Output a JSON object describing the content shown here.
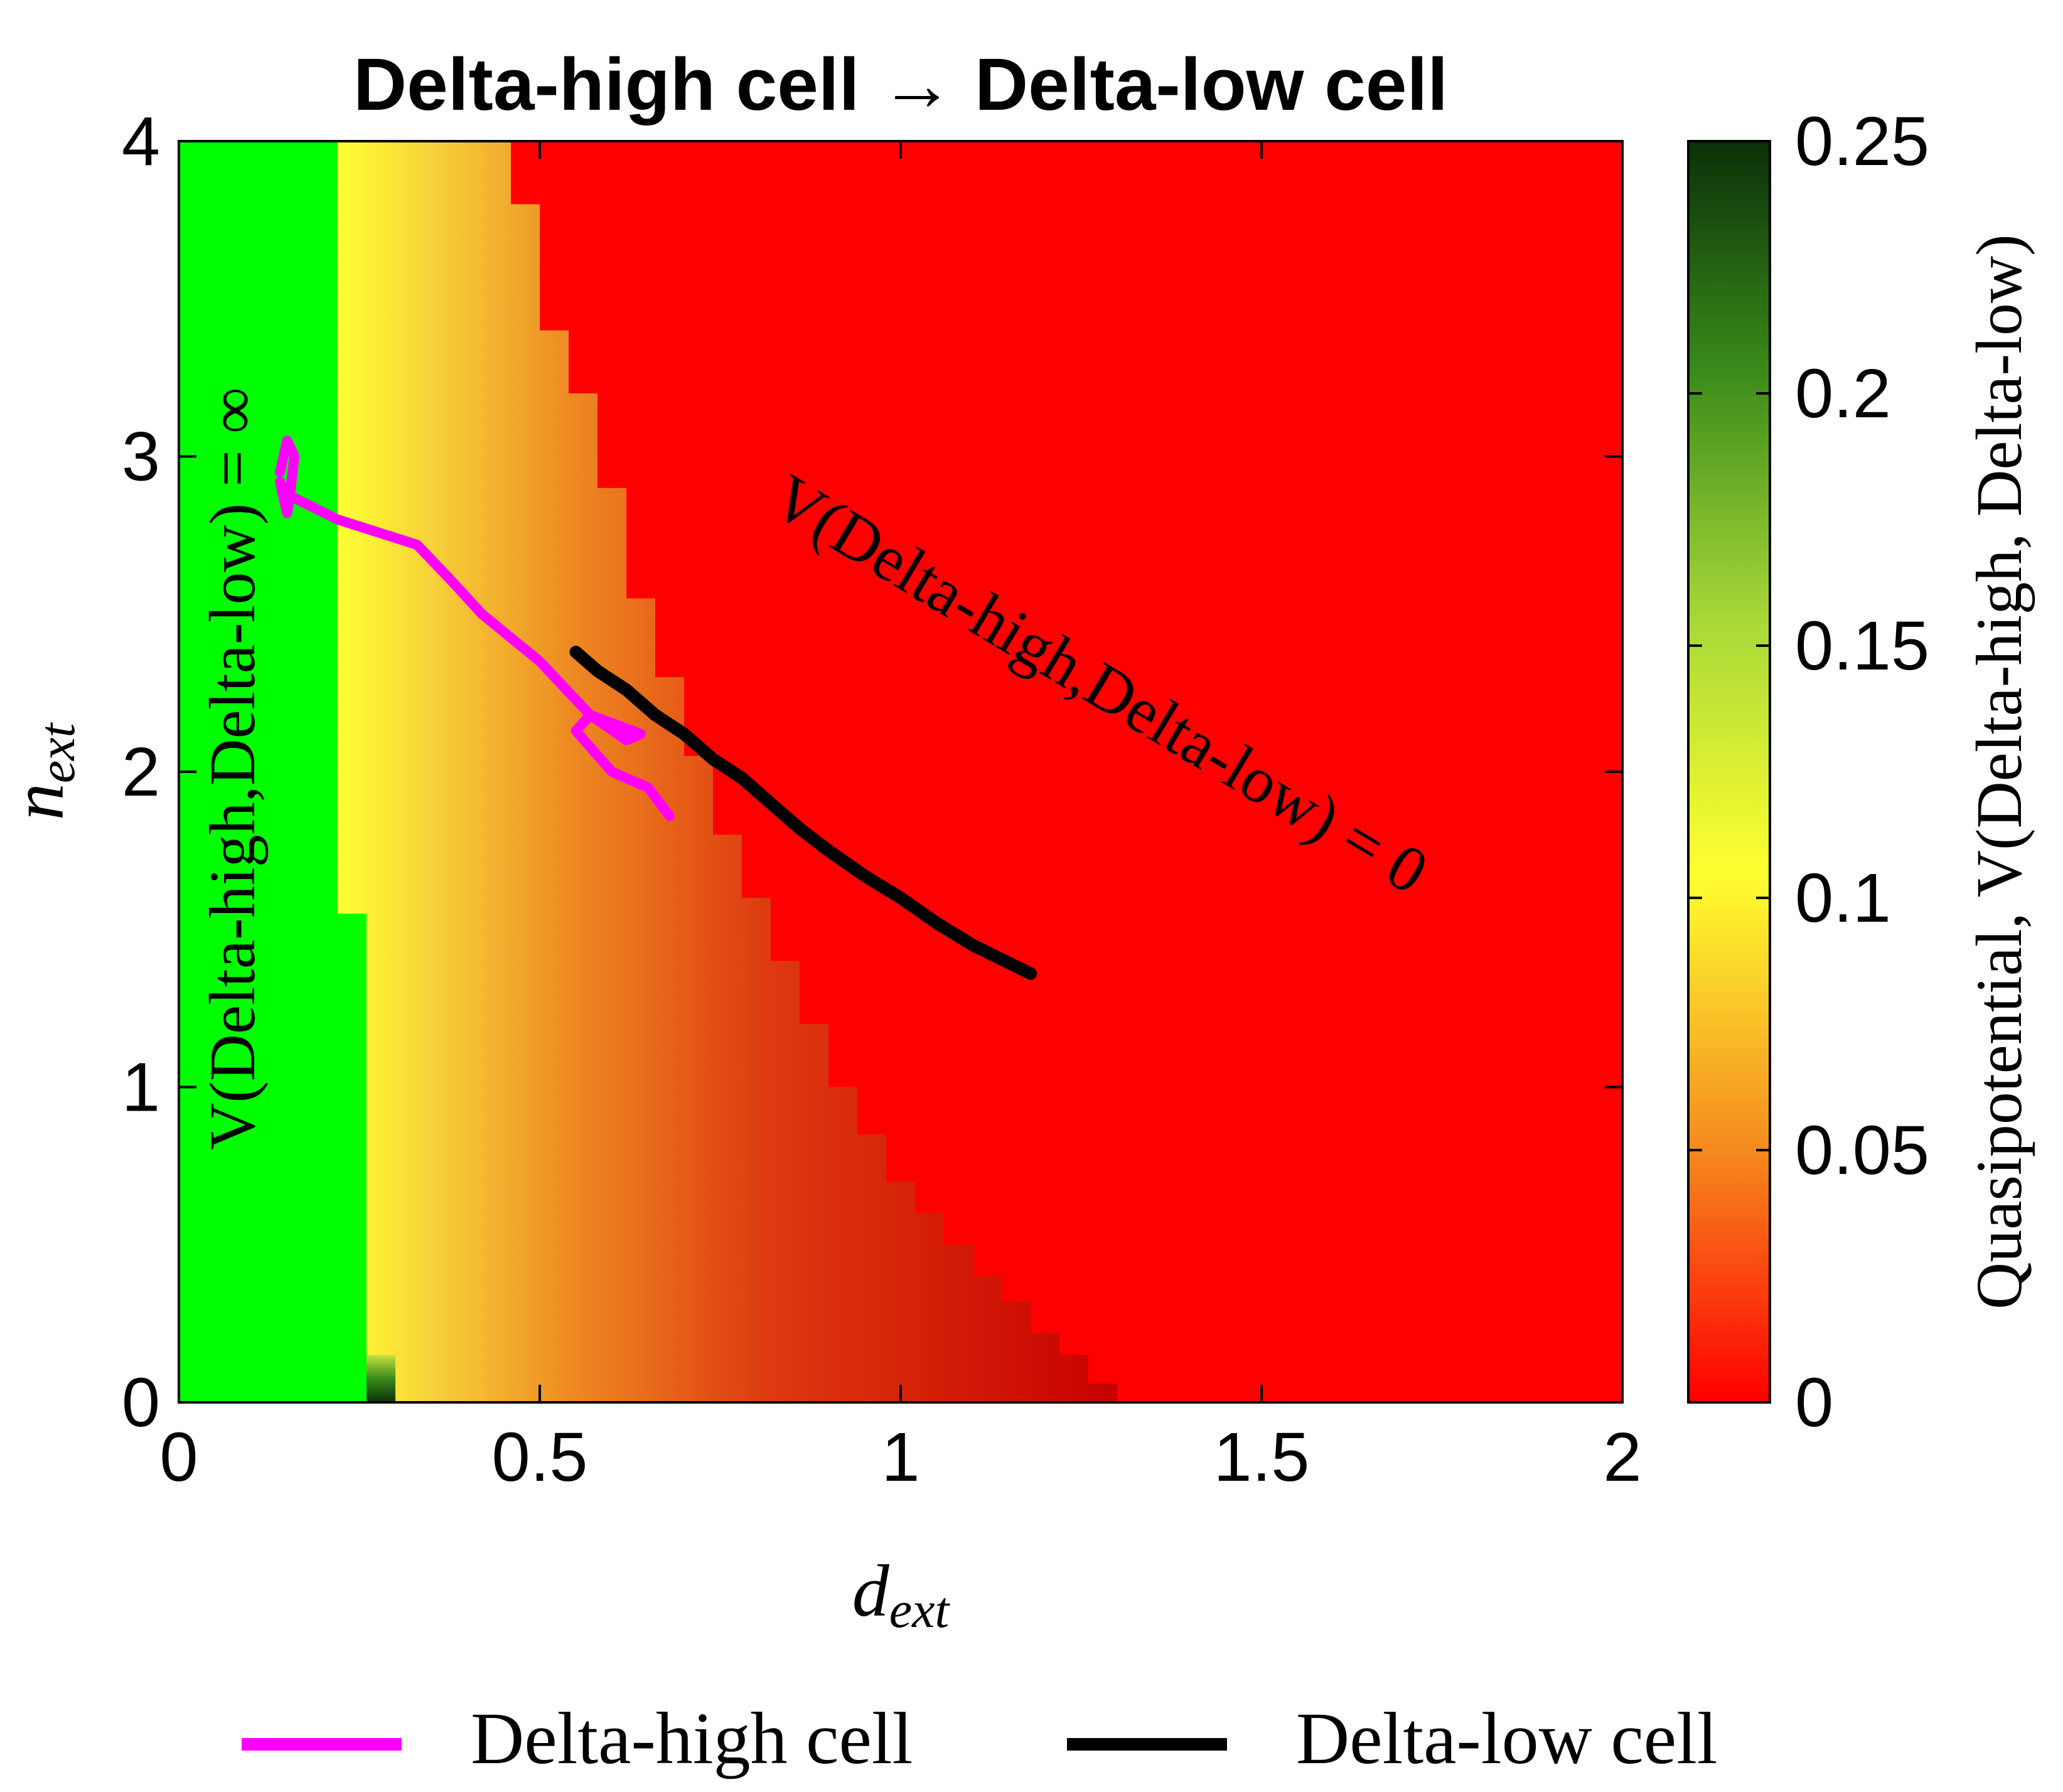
{
  "chart_data": {
    "type": "heatmap",
    "title": "Delta-high cell → Delta-low cell",
    "xlabel": "d",
    "xlabel_sub": "ext",
    "ylabel": "n",
    "ylabel_sub": "ext",
    "xlim": [
      0,
      2
    ],
    "ylim": [
      0,
      4
    ],
    "x_ticks": [
      0,
      0.5,
      1,
      1.5,
      2
    ],
    "x_tick_labels": [
      "0",
      "0.5",
      "1",
      "1.5",
      "2"
    ],
    "y_ticks": [
      0,
      1,
      2,
      3,
      4
    ],
    "y_tick_labels": [
      "0",
      "1",
      "2",
      "3",
      "4"
    ],
    "colorbar": {
      "label": "Quasipotential, V(Delta-high, Delta-low)",
      "range": [
        0,
        0.25
      ],
      "ticks": [
        0,
        0.05,
        0.1,
        0.15,
        0.2,
        0.25
      ],
      "tick_labels": [
        "0",
        "0.05",
        "0.1",
        "0.15",
        "0.2",
        "0.25"
      ],
      "colors": [
        "#ff0000",
        "#f58a1f",
        "#ffff30",
        "#a8d838",
        "#3a8a1a",
        "#0a3008"
      ]
    },
    "regions": {
      "infinite_label": "V(Delta-high,Delta-low) = ∞",
      "infinite_color": "#00ff00",
      "zero_label": "V(Delta-high,Delta-low) = 0",
      "zero_color": "#ff0000",
      "infinite_boundary": [
        [
          0.22,
          4
        ],
        [
          0.22,
          1.55
        ],
        [
          0.26,
          1.55
        ],
        [
          0.26,
          0
        ]
      ],
      "zero_boundary": [
        [
          0.46,
          4
        ],
        [
          0.46,
          3.8
        ],
        [
          0.5,
          3.8
        ],
        [
          0.5,
          3.4
        ],
        [
          0.54,
          3.4
        ],
        [
          0.54,
          3.2
        ],
        [
          0.58,
          3.2
        ],
        [
          0.58,
          2.9
        ],
        [
          0.62,
          2.9
        ],
        [
          0.62,
          2.55
        ],
        [
          0.66,
          2.55
        ],
        [
          0.66,
          2.3
        ],
        [
          0.7,
          2.3
        ],
        [
          0.7,
          2.05
        ],
        [
          0.74,
          2.05
        ],
        [
          0.74,
          1.8
        ],
        [
          0.78,
          1.8
        ],
        [
          0.78,
          1.6
        ],
        [
          0.82,
          1.6
        ],
        [
          0.82,
          1.4
        ],
        [
          0.86,
          1.4
        ],
        [
          0.86,
          1.2
        ],
        [
          0.9,
          1.2
        ],
        [
          0.9,
          1.0
        ],
        [
          0.94,
          1.0
        ],
        [
          0.94,
          0.85
        ],
        [
          0.98,
          0.85
        ],
        [
          0.98,
          0.7
        ],
        [
          1.02,
          0.7
        ],
        [
          1.02,
          0.6
        ],
        [
          1.06,
          0.6
        ],
        [
          1.06,
          0.5
        ],
        [
          1.1,
          0.5
        ],
        [
          1.1,
          0.4
        ],
        [
          1.14,
          0.4
        ],
        [
          1.14,
          0.32
        ],
        [
          1.18,
          0.32
        ],
        [
          1.18,
          0.22
        ],
        [
          1.22,
          0.22
        ],
        [
          1.22,
          0.15
        ],
        [
          1.26,
          0.15
        ],
        [
          1.26,
          0.06
        ],
        [
          1.3,
          0.06
        ],
        [
          1.3,
          0
        ]
      ],
      "low_spot": [
        0.26,
        0.3,
        0,
        0.15
      ]
    },
    "series": [
      {
        "name": "Delta-high cell",
        "color": "#ff00ff",
        "x": [
          0.14,
          0.15,
          0.16,
          0.155,
          0.15,
          0.14,
          0.15,
          0.22,
          0.33,
          0.38,
          0.42,
          0.5,
          0.57,
          0.64,
          0.62,
          0.57,
          0.55,
          0.6,
          0.65,
          0.68
        ],
        "y": [
          2.95,
          3.05,
          3.0,
          2.9,
          2.82,
          2.92,
          2.88,
          2.8,
          2.72,
          2.6,
          2.5,
          2.35,
          2.18,
          2.12,
          2.1,
          2.18,
          2.13,
          2.0,
          1.95,
          1.86
        ]
      },
      {
        "name": "Delta-low cell",
        "color": "#000000",
        "x": [
          0.55,
          0.58,
          0.62,
          0.66,
          0.7,
          0.74,
          0.78,
          0.82,
          0.86,
          0.9,
          0.95,
          1.0,
          1.05,
          1.1,
          1.18
        ],
        "y": [
          2.38,
          2.32,
          2.26,
          2.18,
          2.12,
          2.04,
          1.98,
          1.9,
          1.82,
          1.75,
          1.67,
          1.6,
          1.52,
          1.45,
          1.36
        ]
      }
    ],
    "legend_position": "bottom"
  }
}
